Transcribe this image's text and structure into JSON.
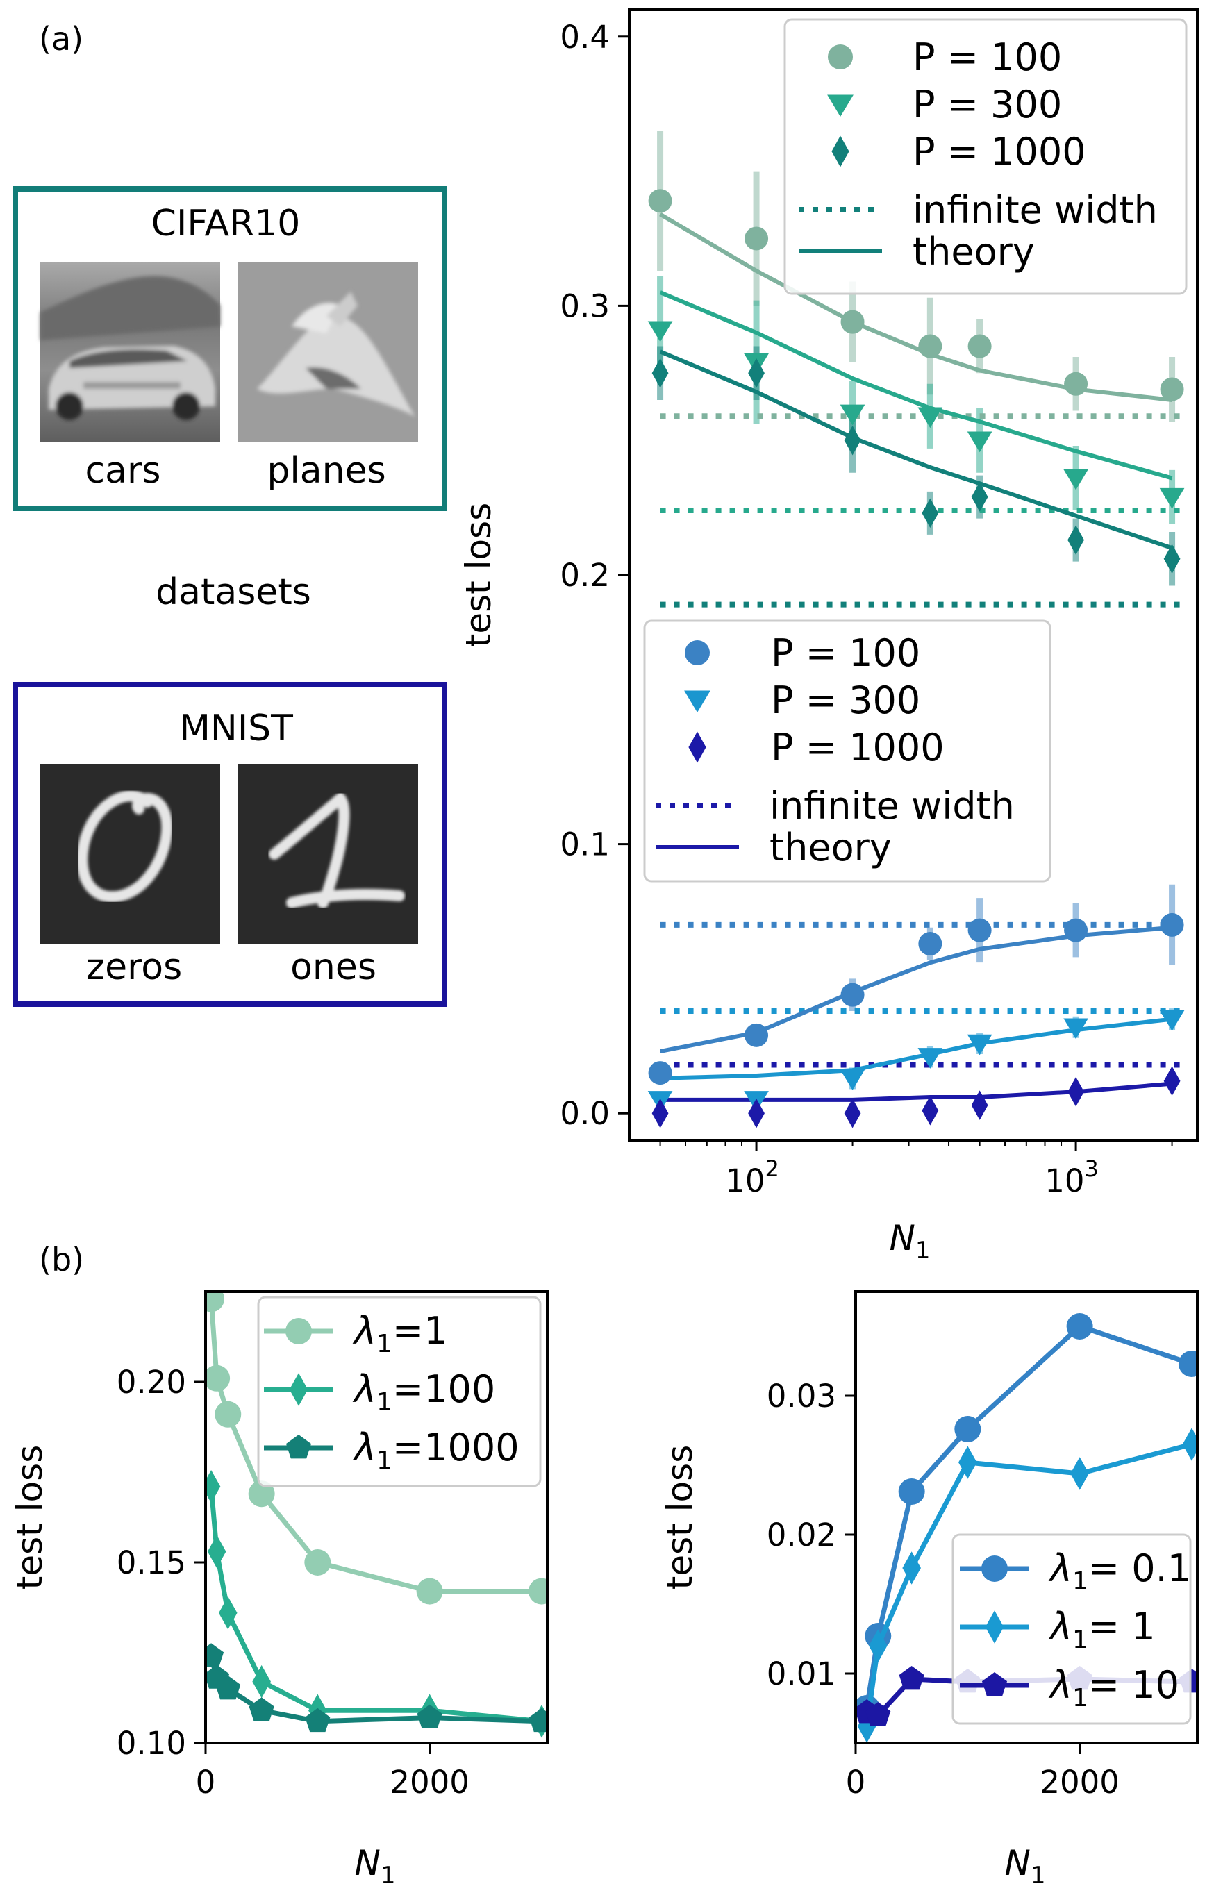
{
  "panels": {
    "a": "(a)",
    "b": "(b)"
  },
  "datasets": {
    "caption": "datasets",
    "cifar": {
      "title": "CIFAR10",
      "labels": [
        "cars",
        "planes"
      ]
    },
    "mnist": {
      "title": "MNIST",
      "labels": [
        "zeros",
        "ones"
      ]
    }
  },
  "colors": {
    "cifar_frame": "#127d78",
    "mnist_frame": "#1a139b",
    "cifar_p100": "#7fb29e",
    "cifar_p300": "#27a98d",
    "cifar_p1000": "#12807a",
    "mnist_p100": "#3b82c4",
    "mnist_p300": "#1a96cf",
    "mnist_p1000": "#1c19a8",
    "b_left_1": "#93cdb2",
    "b_left_100": "#27ae90",
    "b_left_1000": "#148077",
    "b_right_01": "#3482c6",
    "b_right_1": "#1a9ad2",
    "b_right_10": "#1c17a3"
  },
  "chart_data": [
    {
      "type": "line",
      "xscale": "log",
      "xlabel": "N1",
      "ylabel": "test loss",
      "xlim": [
        40,
        2400
      ],
      "ylim": [
        -0.01,
        0.41
      ],
      "xticks": [
        100,
        1000
      ],
      "xtick_labels": [
        "10",
        "10"
      ],
      "xtick_exponents": [
        "2",
        "3"
      ],
      "yticks": [
        0.0,
        0.1,
        0.2,
        0.3,
        0.4
      ],
      "ytick_labels": [
        "0.0",
        "0.1",
        "0.2",
        "0.3",
        "0.4"
      ],
      "x": [
        50,
        100,
        200,
        350,
        500,
        1000,
        2000
      ],
      "legend_cifar": [
        "P = 100",
        "P = 300",
        "P = 1000",
        "infinite width",
        "theory"
      ],
      "legend_mnist": [
        "P = 100",
        "P = 300",
        "P = 1000",
        "infinite width",
        "theory"
      ],
      "series": [
        {
          "group": "cifar",
          "marker": "circle",
          "color": "#7fb29e",
          "values": [
            0.339,
            0.325,
            0.294,
            0.285,
            0.285,
            0.271,
            0.269
          ],
          "err": [
            0.026,
            0.025,
            0.015,
            0.018,
            0.01,
            0.01,
            0.012
          ],
          "infinite": 0.259,
          "theory": [
            0.334,
            0.313,
            0.294,
            0.282,
            0.276,
            0.269,
            0.265
          ]
        },
        {
          "group": "cifar",
          "marker": "triangle",
          "color": "#27a98d",
          "values": [
            0.291,
            0.279,
            0.26,
            0.259,
            0.25,
            0.236,
            0.229
          ],
          "err": [
            0.02,
            0.023,
            0.012,
            0.012,
            0.012,
            0.012,
            0.01
          ],
          "infinite": 0.224,
          "theory": [
            0.305,
            0.29,
            0.273,
            0.262,
            0.257,
            0.246,
            0.236
          ]
        },
        {
          "group": "cifar",
          "marker": "diamond",
          "color": "#12807a",
          "values": [
            0.275,
            0.275,
            0.25,
            0.223,
            0.229,
            0.213,
            0.206
          ],
          "err": [
            0.01,
            0.01,
            0.012,
            0.008,
            0.008,
            0.008,
            0.01
          ],
          "infinite": 0.189,
          "theory": [
            0.283,
            0.268,
            0.251,
            0.24,
            0.234,
            0.222,
            0.21
          ]
        },
        {
          "group": "mnist",
          "marker": "circle",
          "color": "#3b82c4",
          "values": [
            0.015,
            0.029,
            0.044,
            0.063,
            0.068,
            0.068,
            0.07
          ],
          "err": [
            0.003,
            0.004,
            0.006,
            0.006,
            0.012,
            0.01,
            0.015
          ],
          "infinite": 0.07,
          "theory": [
            0.023,
            0.03,
            0.045,
            0.056,
            0.061,
            0.066,
            0.069
          ]
        },
        {
          "group": "mnist",
          "marker": "triangle",
          "color": "#1a96cf",
          "values": [
            0.005,
            0.005,
            0.013,
            0.021,
            0.026,
            0.032,
            0.035
          ],
          "err": [
            0.002,
            0.002,
            0.004,
            0.004,
            0.004,
            0.004,
            0.004
          ],
          "infinite": 0.038,
          "theory": [
            0.013,
            0.014,
            0.016,
            0.022,
            0.026,
            0.031,
            0.035
          ]
        },
        {
          "group": "mnist",
          "marker": "diamond",
          "color": "#1c19a8",
          "values": [
            0.0,
            0.0,
            0.0,
            0.001,
            0.003,
            0.008,
            0.012
          ],
          "err": [
            0.001,
            0.001,
            0.001,
            0.001,
            0.001,
            0.002,
            0.002
          ],
          "infinite": 0.018,
          "theory": [
            0.005,
            0.005,
            0.005,
            0.006,
            0.006,
            0.008,
            0.011
          ]
        }
      ]
    },
    {
      "type": "line",
      "xlabel": "N1",
      "ylabel": "test loss",
      "xlim": [
        0,
        3050
      ],
      "ylim": [
        0.1,
        0.225
      ],
      "xticks": [
        0,
        2000
      ],
      "yticks": [
        0.1,
        0.15,
        0.2
      ],
      "ytick_labels": [
        "0.10",
        "0.15",
        "0.20"
      ],
      "x": [
        50,
        100,
        200,
        500,
        1000,
        2000,
        3000
      ],
      "series": [
        {
          "name": "λ1=1",
          "lambda": "1",
          "marker": "circle",
          "color": "#93cdb2",
          "values": [
            0.223,
            0.201,
            0.191,
            0.169,
            0.15,
            0.142,
            0.142
          ]
        },
        {
          "name": "λ1=100",
          "lambda": "100",
          "marker": "diamond",
          "color": "#27ae90",
          "values": [
            0.171,
            0.153,
            0.136,
            0.117,
            0.109,
            0.109,
            0.106
          ]
        },
        {
          "name": "λ1=1000",
          "lambda": "1000",
          "marker": "pentagon",
          "color": "#148077",
          "values": [
            0.124,
            0.118,
            0.115,
            0.109,
            0.106,
            0.107,
            0.106
          ]
        }
      ]
    },
    {
      "type": "line",
      "xlabel": "N1",
      "ylabel": "test loss",
      "xlim": [
        0,
        3050
      ],
      "ylim": [
        0.005,
        0.0375
      ],
      "xticks": [
        0,
        2000
      ],
      "yticks": [
        0.01,
        0.02,
        0.03
      ],
      "ytick_labels": [
        "0.01",
        "0.02",
        "0.03"
      ],
      "x": [
        100,
        200,
        500,
        1000,
        2000,
        3000
      ],
      "series": [
        {
          "name": "λ1= 0.1",
          "lambda": " 0.1",
          "marker": "circle",
          "color": "#3482c6",
          "values": [
            0.0075,
            0.0127,
            0.0231,
            0.0276,
            0.035,
            0.0323
          ]
        },
        {
          "name": "λ1= 1",
          "lambda": " 1",
          "marker": "diamond",
          "color": "#1a9ad2",
          "values": [
            0.0062,
            0.012,
            0.0176,
            0.0252,
            0.0244,
            0.0265
          ]
        },
        {
          "name": "λ1= 10",
          "lambda": " 10",
          "marker": "pentagon",
          "color": "#1c17a3",
          "values": [
            0.0072,
            0.007,
            0.0096,
            0.0094,
            0.0096,
            0.0094
          ]
        }
      ]
    }
  ]
}
